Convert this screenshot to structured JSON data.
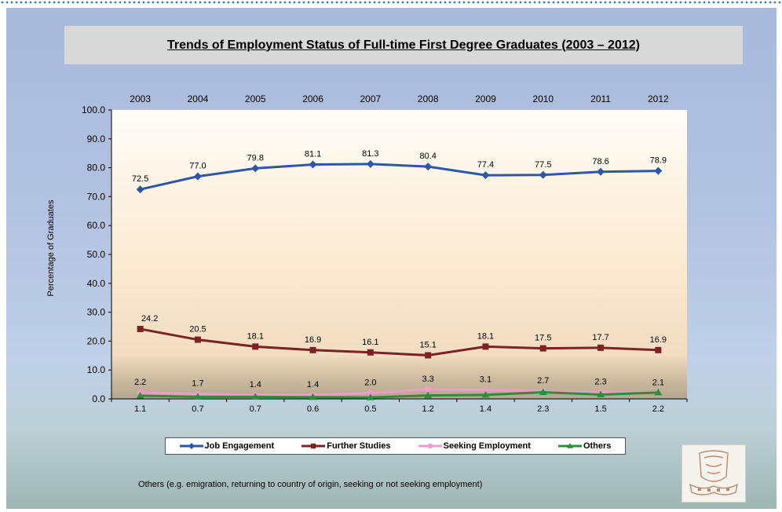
{
  "title": "Trends of Employment Status of Full-time First Degree Graduates (2003 – 2012)",
  "note": "Others (e.g. emigration, returning to country of origin, seeking or not  seeking employment)",
  "logo_icon": "university-crest-icon",
  "chart_data": {
    "type": "line",
    "title": "Trends of Employment Status of Full-time First Degree Graduates (2003 – 2012)",
    "xlabel": "",
    "ylabel": "Percentage of Graduates",
    "ylim": [
      0,
      100
    ],
    "yticks": [
      "0.0",
      "10.0",
      "20.0",
      "30.0",
      "40.0",
      "50.0",
      "60.0",
      "70.0",
      "80.0",
      "90.0",
      "100.0"
    ],
    "x": [
      "2003",
      "2004",
      "2005",
      "2006",
      "2007",
      "2008",
      "2009",
      "2010",
      "2011",
      "2012"
    ],
    "grid": false,
    "legend_position": "bottom",
    "series": [
      {
        "name": "Job Engagement",
        "color": "#2d56a8",
        "marker": "diamond",
        "values": [
          72.5,
          77.0,
          79.8,
          81.1,
          81.3,
          80.4,
          77.4,
          77.5,
          78.6,
          78.9
        ],
        "labels": [
          "72.5",
          "77.0",
          "79.8",
          "81.1",
          "81.3",
          "80.4",
          "77.4",
          "77.5",
          "78.6",
          "78.9"
        ]
      },
      {
        "name": "Further Studies",
        "color": "#7b2323",
        "marker": "square",
        "values": [
          24.2,
          20.5,
          18.1,
          16.9,
          16.1,
          15.1,
          18.1,
          17.5,
          17.7,
          16.9
        ],
        "labels": [
          "24.2",
          "20.5",
          "18.1",
          "16.9",
          "16.1",
          "15.1",
          "18.1",
          "17.5",
          "17.7",
          "16.9"
        ]
      },
      {
        "name": "Seeking Employment",
        "color": "#ef9bc8",
        "marker": "circle",
        "values": [
          2.2,
          1.7,
          1.4,
          1.4,
          2.0,
          3.3,
          3.1,
          2.7,
          2.3,
          2.1
        ],
        "labels": [
          "2.2",
          "1.7",
          "1.4",
          "1.4",
          "2.0",
          "3.3",
          "3.1",
          "2.7",
          "2.3",
          "2.1"
        ]
      },
      {
        "name": "Others",
        "color": "#2f8c3b",
        "marker": "triangle",
        "values": [
          1.1,
          0.7,
          0.7,
          0.6,
          0.5,
          1.2,
          1.4,
          2.3,
          1.5,
          2.2
        ],
        "labels": [
          "1.1",
          "0.7",
          "0.7",
          "0.6",
          "0.5",
          "1.2",
          "1.4",
          "2.3",
          "1.5",
          "2.2"
        ]
      }
    ]
  }
}
